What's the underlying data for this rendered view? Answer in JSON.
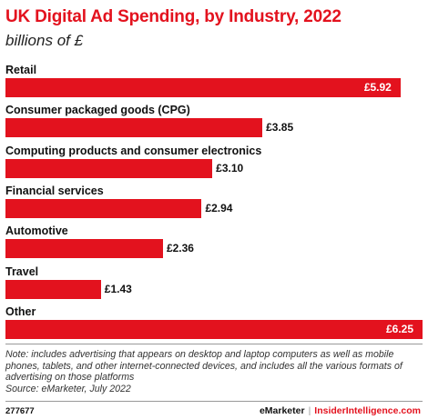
{
  "chart_data": {
    "type": "bar",
    "orientation": "horizontal",
    "title": "UK Digital Ad Spending, by Industry, 2022",
    "subtitle": "billions of £",
    "categories": [
      "Retail",
      "Consumer packaged goods (CPG)",
      "Computing products and consumer electronics",
      "Financial services",
      "Automotive",
      "Travel",
      "Other"
    ],
    "values": [
      5.92,
      3.85,
      3.1,
      2.94,
      2.36,
      1.43,
      6.25
    ],
    "value_labels": [
      "£5.92",
      "£3.85",
      "£3.10",
      "£2.94",
      "£2.36",
      "£1.43",
      "£6.25"
    ],
    "color": "#e3121e",
    "grid": false,
    "legend": "none"
  },
  "note": "Note: includes advertising that appears on desktop and laptop computers as well as mobile phones, tablets, and other internet-connected devices, and includes all the various formats of advertising on those platforms",
  "source": "Source: eMarketer, July 2022",
  "footer": {
    "id": "277677",
    "brand_left": "eMarketer",
    "separator": "|",
    "brand_right": "InsiderIntelligence.com"
  }
}
